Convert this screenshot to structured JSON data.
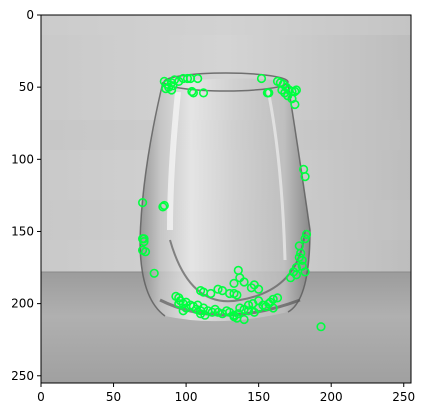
{
  "chart_data": {
    "type": "scatter",
    "title": "",
    "xlabel": "",
    "ylabel": "",
    "xlim": [
      0,
      255
    ],
    "ylim": [
      255,
      0
    ],
    "y_axis_inverted": true,
    "grid": false,
    "background": "grayscale photograph of a stemless wine glass on a table",
    "marker": {
      "shape": "hollow-circle",
      "color": "#00ff40"
    },
    "xticks": [
      0,
      50,
      100,
      150,
      200,
      250
    ],
    "yticks": [
      0,
      50,
      100,
      150,
      200,
      250
    ],
    "series": [
      {
        "points": [
          [
            85,
            46
          ],
          [
            87,
            48
          ],
          [
            88,
            50
          ],
          [
            90,
            47
          ],
          [
            92,
            45
          ],
          [
            95,
            46
          ],
          [
            98,
            44
          ],
          [
            101,
            44
          ],
          [
            103,
            44
          ],
          [
            108,
            44
          ],
          [
            86,
            51
          ],
          [
            90,
            52
          ],
          [
            91,
            49
          ],
          [
            104,
            53
          ],
          [
            105,
            54
          ],
          [
            112,
            54
          ],
          [
            152,
            44
          ],
          [
            163,
            46
          ],
          [
            165,
            47
          ],
          [
            167,
            48
          ],
          [
            169,
            50
          ],
          [
            171,
            52
          ],
          [
            173,
            53
          ],
          [
            175,
            53
          ],
          [
            176,
            52
          ],
          [
            166,
            52
          ],
          [
            168,
            54
          ],
          [
            170,
            56
          ],
          [
            173,
            58
          ],
          [
            175,
            62
          ],
          [
            157,
            54
          ],
          [
            156,
            54
          ],
          [
            181,
            107
          ],
          [
            182,
            112
          ],
          [
            70,
            130
          ],
          [
            85,
            132
          ],
          [
            84,
            133
          ],
          [
            71,
            155
          ],
          [
            71,
            157
          ],
          [
            70,
            155
          ],
          [
            72,
            164
          ],
          [
            70,
            163
          ],
          [
            78,
            179
          ],
          [
            178,
            160
          ],
          [
            179,
            165
          ],
          [
            180,
            170
          ],
          [
            178,
            168
          ],
          [
            176,
            175
          ],
          [
            174,
            178
          ],
          [
            180,
            174
          ],
          [
            182,
            178
          ],
          [
            176,
            180
          ],
          [
            172,
            182
          ],
          [
            183,
            152
          ],
          [
            182,
            155
          ],
          [
            136,
            177
          ],
          [
            137,
            182
          ],
          [
            133,
            186
          ],
          [
            140,
            185
          ],
          [
            145,
            189
          ],
          [
            147,
            187
          ],
          [
            150,
            190
          ],
          [
            93,
            195
          ],
          [
            95,
            196
          ],
          [
            96,
            198
          ],
          [
            98,
            200
          ],
          [
            100,
            199
          ],
          [
            103,
            201
          ],
          [
            105,
            202
          ],
          [
            107,
            204
          ],
          [
            110,
            205
          ],
          [
            112,
            203
          ],
          [
            115,
            205
          ],
          [
            120,
            204
          ],
          [
            122,
            206
          ],
          [
            125,
            207
          ],
          [
            128,
            205
          ],
          [
            130,
            206
          ],
          [
            133,
            208
          ],
          [
            136,
            207
          ],
          [
            140,
            204
          ],
          [
            143,
            201
          ],
          [
            146,
            200
          ],
          [
            150,
            198
          ],
          [
            155,
            202
          ],
          [
            158,
            199
          ],
          [
            160,
            197
          ],
          [
            163,
            196
          ],
          [
            110,
            191
          ],
          [
            112,
            192
          ],
          [
            117,
            193
          ],
          [
            122,
            190
          ],
          [
            125,
            191
          ],
          [
            130,
            193
          ],
          [
            133,
            193
          ],
          [
            135,
            194
          ],
          [
            108,
            201
          ],
          [
            110,
            207
          ],
          [
            113,
            208
          ],
          [
            118,
            206
          ],
          [
            137,
            203
          ],
          [
            143,
            205
          ],
          [
            147,
            206
          ],
          [
            150,
            203
          ],
          [
            153,
            201
          ],
          [
            157,
            200
          ],
          [
            160,
            203
          ],
          [
            133,
            209
          ],
          [
            135,
            210
          ],
          [
            140,
            211
          ],
          [
            100,
            203
          ],
          [
            98,
            205
          ],
          [
            95,
            200
          ],
          [
            193,
            216
          ]
        ]
      }
    ]
  }
}
